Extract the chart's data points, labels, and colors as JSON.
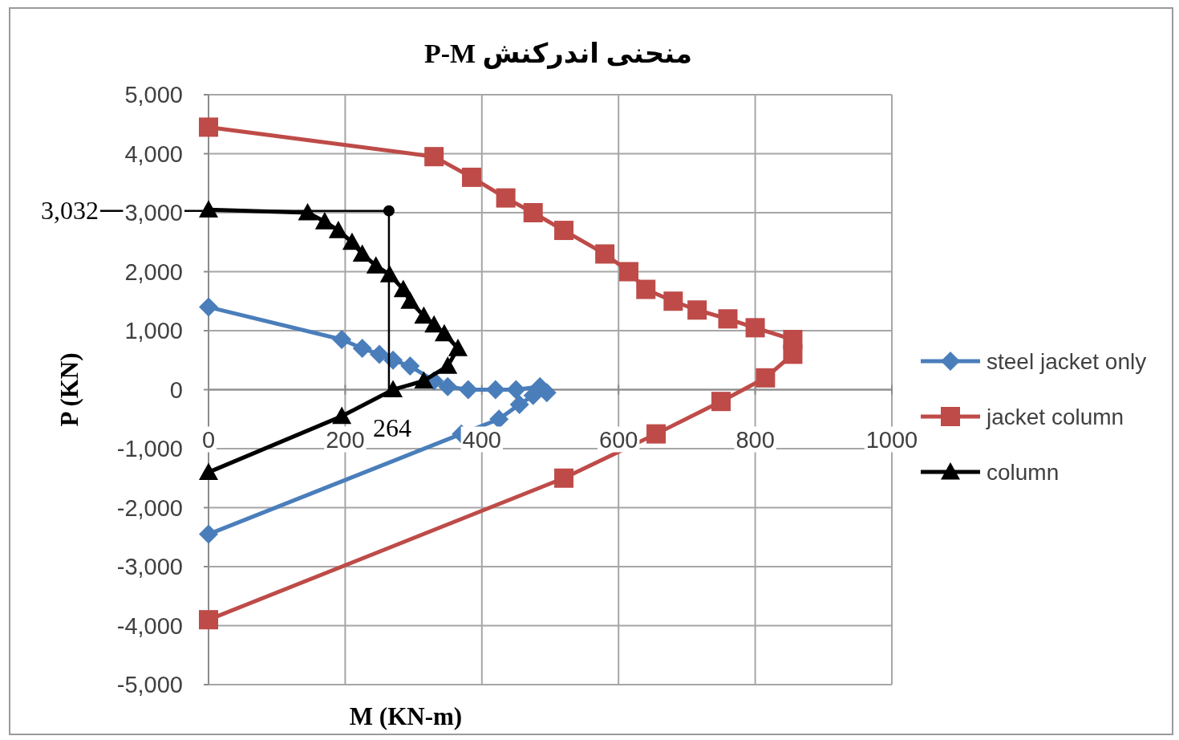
{
  "chart_data": {
    "type": "line",
    "title": "منحنی اندرکنش P-M",
    "xlabel": "M (KN-m)",
    "ylabel": "P (KN)",
    "xlim": [
      0,
      1000
    ],
    "xticks": [
      0,
      200,
      400,
      600,
      800,
      1000
    ],
    "ylim": [
      -5000,
      5000
    ],
    "yticks": [
      {
        "value": -5000,
        "label": "-5,000"
      },
      {
        "value": -4000,
        "label": "-4,000"
      },
      {
        "value": -3000,
        "label": "-3,000"
      },
      {
        "value": -2000,
        "label": "-2,000"
      },
      {
        "value": -1000,
        "label": "-1,000"
      },
      0,
      {
        "value": 1000,
        "label": "1,000"
      },
      {
        "value": 2000,
        "label": "2,000"
      },
      {
        "value": 3000,
        "label": "3,000"
      },
      {
        "value": 4000,
        "label": "4,000"
      },
      {
        "value": 5000,
        "label": "5,000"
      }
    ],
    "grid": true,
    "legend": "right",
    "series": [
      {
        "name": "steel jacket only",
        "color": "#4a7ebb",
        "marker": "diamond",
        "x": [
          0,
          195,
          225,
          250,
          270,
          295,
          330,
          350,
          380,
          420,
          450,
          485,
          495,
          475,
          455,
          425,
          370,
          0
        ],
        "values": [
          1400,
          850,
          700,
          600,
          500,
          400,
          150,
          50,
          0,
          0,
          0,
          50,
          -50,
          -100,
          -250,
          -500,
          -750,
          -2450
        ]
      },
      {
        "name": "jacket column",
        "color": "#be4b48",
        "marker": "square",
        "x": [
          0,
          330,
          385,
          435,
          475,
          520,
          580,
          615,
          640,
          680,
          715,
          760,
          800,
          855,
          855,
          815,
          750,
          655,
          520,
          0
        ],
        "values": [
          4450,
          3950,
          3600,
          3250,
          3000,
          2700,
          2300,
          2000,
          1700,
          1500,
          1350,
          1200,
          1050,
          850,
          600,
          200,
          -200,
          -750,
          -1500,
          -3900
        ]
      },
      {
        "name": "column",
        "color": "#000000",
        "marker": "triangle",
        "x": [
          0,
          145,
          170,
          190,
          210,
          225,
          245,
          265,
          285,
          295,
          315,
          330,
          345,
          365,
          350,
          315,
          270,
          195,
          0
        ],
        "values": [
          3050,
          3000,
          2850,
          2700,
          2500,
          2300,
          2100,
          1950,
          1700,
          1500,
          1250,
          1100,
          950,
          700,
          400,
          150,
          0,
          -450,
          -1400
        ]
      }
    ],
    "annotations": [
      {
        "text": "3,032",
        "x": 264,
        "y": 3032
      },
      {
        "text": "264",
        "x": 264,
        "y": 0
      }
    ]
  }
}
